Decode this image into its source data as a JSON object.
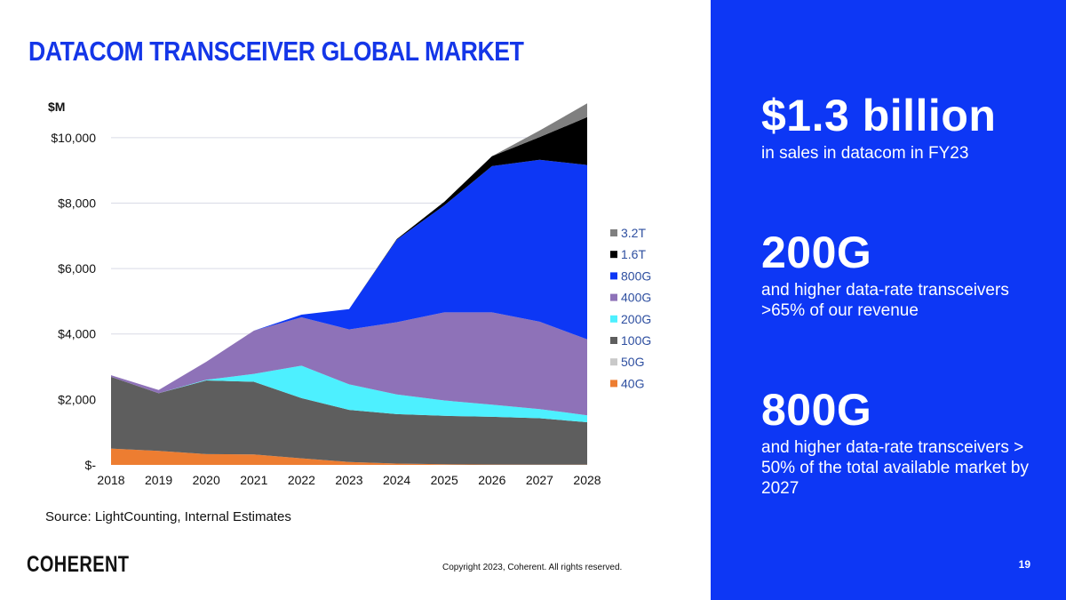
{
  "title": "DATACOM TRANSCEIVER GLOBAL MARKET",
  "source": "Source: LightCounting, Internal Estimates",
  "copyright": "Copyright 2023, Coherent. All rights reserved.",
  "logo_text": "COHERENT",
  "page_number": "19",
  "stats": [
    {
      "value": "$1.3 billion",
      "desc": "in sales in datacom in FY23"
    },
    {
      "value": "200G",
      "desc": "and higher data-rate transceivers >65% of our revenue"
    },
    {
      "value": "800G",
      "desc": "and higher data-rate transceivers > 50% of the total available market by 2027"
    }
  ],
  "colors": {
    "title": "#1436e8",
    "panel": "#0d37f5",
    "40G": "#ed7d31",
    "50G": "#c9c9c9",
    "100G": "#5e5e5e",
    "200G": "#4df0ff",
    "400G": "#8e72b8",
    "800G": "#0d37f5",
    "1.6T": "#000000",
    "3.2T": "#7f7f7f"
  },
  "chart_data": {
    "type": "area",
    "stacked": true,
    "ylabel": "$M",
    "ylim": [
      0,
      11000
    ],
    "yticks": [
      0,
      2000,
      4000,
      6000,
      8000,
      10000
    ],
    "ytick_labels": [
      "$-",
      "$2,000",
      "$4,000",
      "$6,000",
      "$8,000",
      "$10,000"
    ],
    "categories": [
      "2018",
      "2019",
      "2020",
      "2021",
      "2022",
      "2023",
      "2024",
      "2025",
      "2026",
      "2027",
      "2028"
    ],
    "legend_position": "right",
    "series": [
      {
        "name": "40G",
        "values": [
          500,
          430,
          330,
          320,
          200,
          90,
          40,
          20,
          10,
          5,
          5
        ]
      },
      {
        "name": "50G",
        "values": [
          0,
          0,
          0,
          0,
          0,
          0,
          0,
          0,
          0,
          0,
          0
        ]
      },
      {
        "name": "100G",
        "values": [
          2190,
          1760,
          2250,
          2220,
          1840,
          1590,
          1510,
          1480,
          1460,
          1420,
          1300
        ]
      },
      {
        "name": "200G",
        "values": [
          0,
          0,
          20,
          240,
          990,
          780,
          600,
          470,
          370,
          280,
          210
        ]
      },
      {
        "name": "400G",
        "values": [
          50,
          100,
          550,
          1320,
          1480,
          1680,
          2210,
          2690,
          2820,
          2670,
          2320
        ]
      },
      {
        "name": "800G",
        "values": [
          0,
          0,
          0,
          0,
          80,
          620,
          2520,
          3270,
          4470,
          4950,
          5330
        ]
      },
      {
        "name": "1.6T",
        "values": [
          0,
          0,
          0,
          0,
          0,
          0,
          20,
          110,
          300,
          690,
          1460
        ]
      },
      {
        "name": "3.2T",
        "values": [
          0,
          0,
          0,
          0,
          0,
          0,
          0,
          0,
          0,
          200,
          420
        ]
      }
    ],
    "legend_order": [
      "3.2T",
      "1.6T",
      "800G",
      "400G",
      "200G",
      "100G",
      "50G",
      "40G"
    ]
  }
}
